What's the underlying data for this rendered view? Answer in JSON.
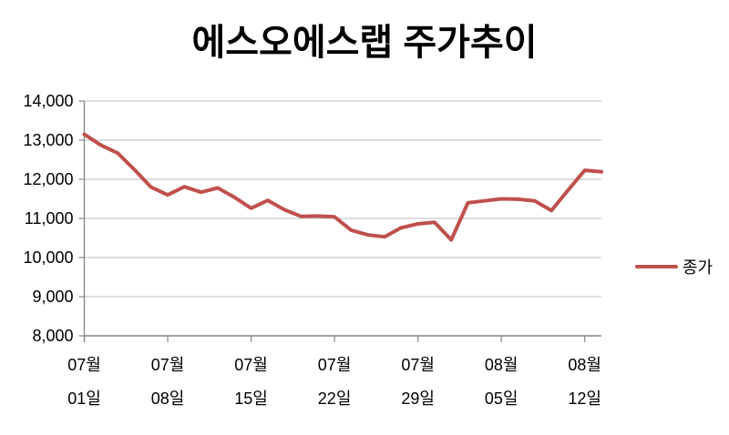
{
  "title": "에스오에스랩 주가추이",
  "legend": {
    "label": "종가"
  },
  "colors": {
    "series_line": "#C0504D",
    "gridline": "#C9C9C9",
    "axis_line": "#898989",
    "tick_mark": "#898989",
    "text": "#000000",
    "background": "#FFFFFF"
  },
  "chart_data": {
    "type": "line",
    "title": "에스오에스랩 주가추이",
    "xlabel": "",
    "ylabel": "",
    "ylim": [
      8000,
      14000
    ],
    "y_tick_step": 1000,
    "y_ticks": [
      14000,
      13000,
      12000,
      11000,
      10000,
      9000,
      8000
    ],
    "grid": true,
    "legend_position": "right",
    "x_label_every": 5,
    "x_tick_labels": [
      {
        "month": "07월",
        "day": "01일"
      },
      {
        "month": "07월",
        "day": "08일"
      },
      {
        "month": "07월",
        "day": "15일"
      },
      {
        "month": "07월",
        "day": "22일"
      },
      {
        "month": "07월",
        "day": "29일"
      },
      {
        "month": "08월",
        "day": "05일"
      },
      {
        "month": "08월",
        "day": "12일"
      }
    ],
    "series": [
      {
        "name": "종가",
        "color": "#C0504D",
        "x": [
          "07-01",
          "07-02",
          "07-03",
          "07-04",
          "07-05",
          "07-08",
          "07-09",
          "07-10",
          "07-11",
          "07-12",
          "07-15",
          "07-16",
          "07-17",
          "07-18",
          "07-19",
          "07-22",
          "07-23",
          "07-24",
          "07-25",
          "07-26",
          "07-29",
          "07-30",
          "07-31",
          "08-01",
          "08-02",
          "08-05",
          "08-06",
          "08-07",
          "08-08",
          "08-09",
          "08-12",
          "08-13"
        ],
        "values": [
          13150,
          12870,
          12670,
          12250,
          11800,
          11600,
          11810,
          11670,
          11780,
          11540,
          11260,
          11460,
          11220,
          11050,
          11060,
          11040,
          10700,
          10580,
          10530,
          10760,
          10860,
          10900,
          10450,
          11400,
          11450,
          11500,
          11490,
          11450,
          11200,
          11720,
          12230,
          12190
        ]
      }
    ]
  }
}
